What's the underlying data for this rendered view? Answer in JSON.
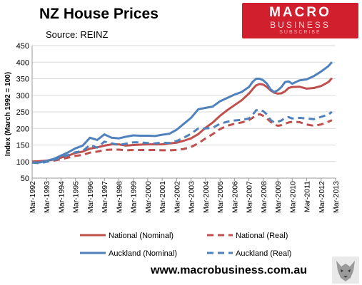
{
  "header": {
    "title": "NZ House Prices",
    "source": "Source: REINZ"
  },
  "logo": {
    "main": "MACRO",
    "sub": "BUSINESS",
    "tag": "SUBSCRIBE",
    "color": "#d21f2e"
  },
  "footer": {
    "website": "www.macrobusiness.com.au",
    "emblem_icon": "wolf-head-icon"
  },
  "chart_data": {
    "type": "line",
    "title": "NZ House Prices",
    "subtitle": "Source: REINZ",
    "ylabel": "Index (March 1992 = 100)",
    "xlabel": "",
    "ylim": [
      50,
      450
    ],
    "yticks": [
      50,
      100,
      150,
      200,
      250,
      300,
      350,
      400,
      450
    ],
    "xlim": [
      1992,
      2013
    ],
    "xticks": [
      "Mar-1992",
      "Mar-1993",
      "Mar-1994",
      "Mar-1995",
      "Mar-1996",
      "Mar-1997",
      "Mar-1998",
      "Mar-1999",
      "Mar-2000",
      "Mar-2001",
      "Mar-2002",
      "Mar-2003",
      "Mar-2004",
      "Mar-2005",
      "Mar-2006",
      "Mar-2007",
      "Mar-2008",
      "Mar-2009",
      "Mar-2010",
      "Mar-2011",
      "Mar-2012",
      "Mar-2013"
    ],
    "grid": "horizontal",
    "legend_position": "bottom",
    "series": [
      {
        "name": "National (Nominal)",
        "color": "#c0504d",
        "style": "solid",
        "x": [
          1992,
          1992.5,
          1993,
          1993.5,
          1994,
          1994.5,
          1995,
          1995.5,
          1996,
          1996.5,
          1997,
          1997.5,
          1998,
          1998.5,
          1999,
          1999.5,
          2000,
          2000.5,
          2001,
          2001.5,
          2002,
          2002.5,
          2003,
          2003.5,
          2004,
          2004.5,
          2005,
          2005.5,
          2006,
          2006.5,
          2007,
          2007.25,
          2007.5,
          2007.75,
          2008,
          2008.25,
          2008.5,
          2008.75,
          2009,
          2009.25,
          2009.5,
          2009.75,
          2010,
          2010.5,
          2011,
          2011.5,
          2012,
          2012.5,
          2012.75
        ],
        "values": [
          100,
          101,
          103,
          106,
          112,
          118,
          126,
          130,
          139,
          143,
          148,
          152,
          152,
          148,
          150,
          151,
          152,
          152,
          152,
          155,
          157,
          163,
          170,
          183,
          202,
          218,
          238,
          255,
          270,
          285,
          305,
          318,
          330,
          334,
          332,
          325,
          315,
          308,
          305,
          306,
          312,
          322,
          325,
          326,
          320,
          322,
          328,
          340,
          352
        ]
      },
      {
        "name": "National (Real)",
        "color": "#c0504d",
        "style": "dashed",
        "x": [
          1992,
          1992.5,
          1993,
          1993.5,
          1994,
          1994.5,
          1995,
          1995.5,
          1996,
          1996.5,
          1997,
          1997.5,
          1998,
          1998.5,
          1999,
          1999.5,
          2000,
          2000.5,
          2001,
          2001.5,
          2002,
          2002.5,
          2003,
          2003.5,
          2004,
          2004.5,
          2005,
          2005.5,
          2006,
          2006.5,
          2007,
          2007.25,
          2007.5,
          2007.75,
          2008,
          2008.25,
          2008.5,
          2008.75,
          2009,
          2009.25,
          2009.5,
          2009.75,
          2010,
          2010.5,
          2011,
          2011.5,
          2012,
          2012.5,
          2012.75
        ],
        "values": [
          100,
          99,
          101,
          103,
          107,
          112,
          117,
          120,
          127,
          130,
          135,
          136,
          136,
          134,
          135,
          135,
          135,
          135,
          134,
          134,
          135,
          138,
          144,
          155,
          170,
          183,
          198,
          208,
          214,
          218,
          225,
          232,
          240,
          243,
          238,
          230,
          220,
          212,
          208,
          210,
          214,
          218,
          220,
          219,
          212,
          208,
          212,
          220,
          225
        ]
      },
      {
        "name": "Auckland (Nominal)",
        "color": "#4f81bd",
        "style": "solid",
        "x": [
          1992,
          1992.5,
          1993,
          1993.5,
          1994,
          1994.5,
          1995,
          1995.5,
          1996,
          1996.5,
          1997,
          1997.5,
          1998,
          1998.5,
          1999,
          1999.5,
          2000,
          2000.5,
          2001,
          2001.5,
          2002,
          2002.5,
          2003,
          2003.5,
          2004,
          2004.5,
          2005,
          2005.5,
          2006,
          2006.5,
          2007,
          2007.25,
          2007.5,
          2007.75,
          2008,
          2008.25,
          2008.5,
          2008.75,
          2009,
          2009.25,
          2009.5,
          2009.75,
          2010,
          2010.5,
          2011,
          2011.5,
          2012,
          2012.5,
          2012.75
        ],
        "values": [
          97,
          97,
          102,
          108,
          118,
          128,
          140,
          148,
          172,
          165,
          182,
          172,
          170,
          175,
          179,
          178,
          178,
          177,
          181,
          184,
          196,
          214,
          232,
          258,
          262,
          266,
          282,
          292,
          302,
          310,
          325,
          340,
          350,
          350,
          345,
          335,
          318,
          310,
          315,
          325,
          340,
          342,
          335,
          345,
          348,
          358,
          372,
          388,
          400
        ]
      },
      {
        "name": "Auckland (Real)",
        "color": "#4f81bd",
        "style": "dashed",
        "x": [
          1992,
          1992.5,
          1993,
          1993.5,
          1994,
          1994.5,
          1995,
          1995.5,
          1996,
          1996.5,
          1997,
          1997.5,
          1998,
          1998.5,
          1999,
          1999.5,
          2000,
          2000.5,
          2001,
          2001.5,
          2002,
          2002.5,
          2003,
          2003.5,
          2004,
          2004.5,
          2005,
          2005.5,
          2006,
          2006.5,
          2007,
          2007.25,
          2007.5,
          2007.75,
          2008,
          2008.25,
          2008.5,
          2008.75,
          2009,
          2009.25,
          2009.5,
          2009.75,
          2010,
          2010.5,
          2011,
          2011.5,
          2012,
          2012.5,
          2012.75
        ],
        "values": [
          97,
          95,
          99,
          104,
          113,
          120,
          128,
          132,
          150,
          142,
          160,
          155,
          150,
          154,
          158,
          158,
          156,
          155,
          157,
          156,
          162,
          172,
          184,
          200,
          200,
          202,
          214,
          220,
          224,
          226,
          230,
          240,
          255,
          256,
          252,
          242,
          226,
          218,
          220,
          224,
          232,
          234,
          230,
          232,
          230,
          228,
          235,
          242,
          250
        ]
      }
    ]
  }
}
